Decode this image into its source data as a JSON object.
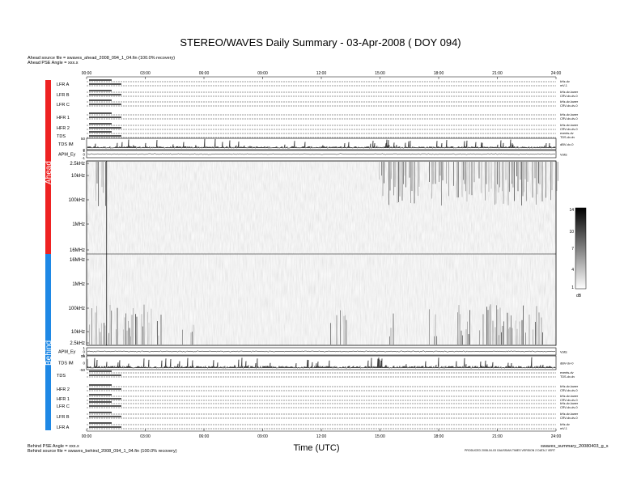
{
  "page": {
    "title": "STEREO/WAVES Daily Summary - 03-Apr-2008 ( DOY 094)",
    "ahead_source": "Ahead source file = swaves_ahead_2008_094_1_04.fin (100.0% recovery)",
    "ahead_angle": "Ahead PSE Angle = xxx.x",
    "behind_angle": "Behind PSE Angle = xxx.x",
    "behind_source": "Behind source file = swaves_behind_2008_094_1_04.fin (100.0% recovery)",
    "xlabel": "Time (UTC)",
    "file_name": "swaves_summary_20080403_g_s",
    "produced_by": "PRODUCED 2008-04-03 GAUSSIAN TIMES VERSION 2 DATA 2 VERT",
    "ahead_label": "Ahead",
    "behind_label": "Behind",
    "colorbar_unit": "dB",
    "ahead_color": "#ee2222",
    "behind_color": "#1e88e5"
  },
  "chart_data": {
    "type": "heatmap",
    "title": "STEREO/WAVES Daily Summary - 03-Apr-2008 ( DOY 094)",
    "xlabel": "Time (UTC)",
    "x_ticks": [
      "00:00",
      "03:00",
      "06:00",
      "09:00",
      "12:00",
      "15:00",
      "18:00",
      "21:00",
      "24:00"
    ],
    "colorbar": {
      "range": [
        1,
        14
      ],
      "ticks": [
        "14",
        "10",
        "7",
        "4",
        "1"
      ],
      "unit": "dB"
    },
    "ahead_spectrogram": {
      "y_ticks": [
        "2.5kHz",
        "10kHz",
        "100kHz",
        "1MHz",
        "16MHz"
      ]
    },
    "behind_spectrogram": {
      "y_ticks": [
        "16MHz",
        "1MHz",
        "100kHz",
        "10kHz",
        "2.5kHz"
      ]
    },
    "ahead_panels": [
      {
        "label": "LFR A",
        "right": "kHz-dv",
        "right2": "mV-1"
      },
      {
        "label": "LFR B",
        "right": "kHz-dv-lower",
        "right2": "CRV-dv-dv-0"
      },
      {
        "label": "LFR C",
        "right": "kHz-dv-lower",
        "right2": "CRV-dv-dv-0"
      },
      {
        "label": "HFR 1",
        "right": "kHz-dv-lower",
        "right2": "CRV-dv-dv-0"
      },
      {
        "label": "HFR 2",
        "right": "kHz-dv-lower",
        "right2": "CRV-dv-dv-0"
      },
      {
        "label": "TDS",
        "right": "events-dv",
        "right2": "TDS-dv-dv"
      }
    ],
    "ahead_tdsm": {
      "label": "TDS IM",
      "yticks": [
        "50",
        "0"
      ],
      "right": "dBV-dv-0"
    },
    "ahead_apm": {
      "label": "APM_Ey",
      "yticks": [
        "1",
        "0",
        "-1"
      ],
      "right": "Volts"
    },
    "behind_apm": {
      "label": "APM_Ey",
      "yticks": [
        "1",
        "0",
        "-1"
      ],
      "right": "Volts"
    },
    "behind_tdsm": {
      "label": "TDS IM",
      "yticks": [
        "50",
        "0",
        "-50"
      ],
      "right": "dBV-dv-0"
    },
    "behind_panels": [
      {
        "label": "TDS",
        "right": "events-dv",
        "right2": "TDS-dv-dv"
      },
      {
        "label": "HFR 2",
        "right": "kHz-dv-lower",
        "right2": "CRV-dv-dv-0"
      },
      {
        "label": "HFR 1",
        "right": "kHz-dv-lower",
        "right2": "CRV-dv-dv-0"
      },
      {
        "label": "LFR C",
        "right": "kHz-dv-lower",
        "right2": "CRV-dv-dv-0"
      },
      {
        "label": "LFR B",
        "right": "kHz-dv-lower",
        "right2": "CRV-dv-dv-0"
      },
      {
        "label": "LFR A",
        "right": "kHz-dv",
        "right2": "mV-1"
      }
    ]
  }
}
